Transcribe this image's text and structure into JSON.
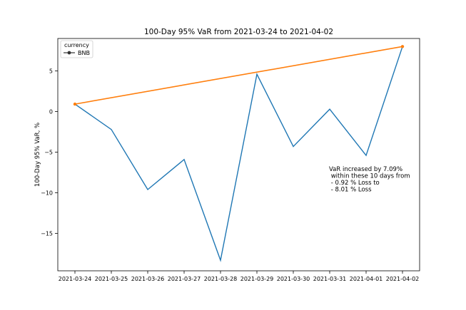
{
  "chart_data": {
    "type": "line",
    "title": "100-Day 95% VaR from 2021-03-24 to 2021-04-02",
    "xlabel": "",
    "ylabel": "100-Day 95% VaR, %",
    "categories": [
      "2021-03-24",
      "2021-03-25",
      "2021-03-26",
      "2021-03-27",
      "2021-03-28",
      "2021-03-29",
      "2021-03-30",
      "2021-03-31",
      "2021-04-01",
      "2021-04-02"
    ],
    "series": [
      {
        "name": "BNB",
        "color": "#1f77b4",
        "values": [
          0.92,
          -2.2,
          -9.6,
          -5.9,
          -18.3,
          4.6,
          -4.3,
          0.3,
          -5.4,
          8.01
        ]
      }
    ],
    "trend_line": {
      "color": "#ff7f0e",
      "from": {
        "x": "2021-03-24",
        "y": 0.92
      },
      "to": {
        "x": "2021-04-02",
        "y": 8.01
      }
    },
    "ylim": [
      -19.6,
      9.0
    ],
    "yticks": [
      5,
      0,
      -5,
      -10,
      -15
    ],
    "grid": false,
    "legend": {
      "title": "currency",
      "placement": "top-left",
      "entries": [
        "BNB"
      ]
    },
    "annotation": [
      "VaR increased by 7.09%",
      " within these 10 days from",
      " - 0.92 % Loss to",
      " - 8.01 % Loss"
    ]
  }
}
